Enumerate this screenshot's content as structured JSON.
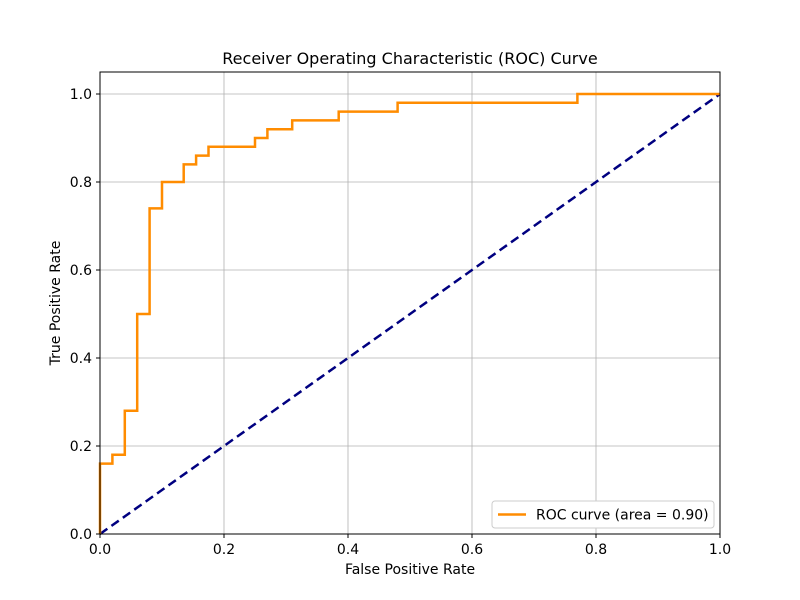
{
  "chart_data": {
    "type": "line",
    "title": "Receiver Operating Characteristic (ROC) Curve",
    "xlabel": "False Positive Rate",
    "ylabel": "True Positive Rate",
    "xlim": [
      0.0,
      1.0
    ],
    "ylim": [
      0.0,
      1.05
    ],
    "xticks": [
      0.0,
      0.2,
      0.4,
      0.6,
      0.8,
      1.0
    ],
    "yticks": [
      0.0,
      0.2,
      0.4,
      0.6,
      0.8,
      1.0
    ],
    "xtick_labels": [
      "0.0",
      "0.2",
      "0.4",
      "0.6",
      "0.8",
      "1.0"
    ],
    "ytick_labels": [
      "0.0",
      "0.2",
      "0.4",
      "0.6",
      "0.8",
      "1.0"
    ],
    "grid": true,
    "legend_position": "lower-right",
    "series": [
      {
        "name": "ROC curve (area = 0.90)",
        "color": "#ff8c00",
        "style": "solid-step",
        "points": [
          [
            0.0,
            0.0
          ],
          [
            0.0,
            0.16
          ],
          [
            0.02,
            0.16
          ],
          [
            0.02,
            0.18
          ],
          [
            0.04,
            0.18
          ],
          [
            0.04,
            0.28
          ],
          [
            0.06,
            0.28
          ],
          [
            0.06,
            0.5
          ],
          [
            0.08,
            0.5
          ],
          [
            0.08,
            0.74
          ],
          [
            0.1,
            0.74
          ],
          [
            0.1,
            0.8
          ],
          [
            0.135,
            0.8
          ],
          [
            0.135,
            0.84
          ],
          [
            0.155,
            0.84
          ],
          [
            0.155,
            0.86
          ],
          [
            0.175,
            0.86
          ],
          [
            0.175,
            0.88
          ],
          [
            0.25,
            0.88
          ],
          [
            0.25,
            0.9
          ],
          [
            0.27,
            0.9
          ],
          [
            0.27,
            0.92
          ],
          [
            0.31,
            0.92
          ],
          [
            0.31,
            0.94
          ],
          [
            0.385,
            0.94
          ],
          [
            0.385,
            0.96
          ],
          [
            0.48,
            0.96
          ],
          [
            0.48,
            0.98
          ],
          [
            0.77,
            0.98
          ],
          [
            0.77,
            1.0
          ],
          [
            1.0,
            1.0
          ]
        ]
      },
      {
        "name": "",
        "color": "#000080",
        "style": "dashed",
        "points": [
          [
            0.0,
            0.0
          ],
          [
            1.0,
            1.0
          ]
        ]
      }
    ]
  }
}
